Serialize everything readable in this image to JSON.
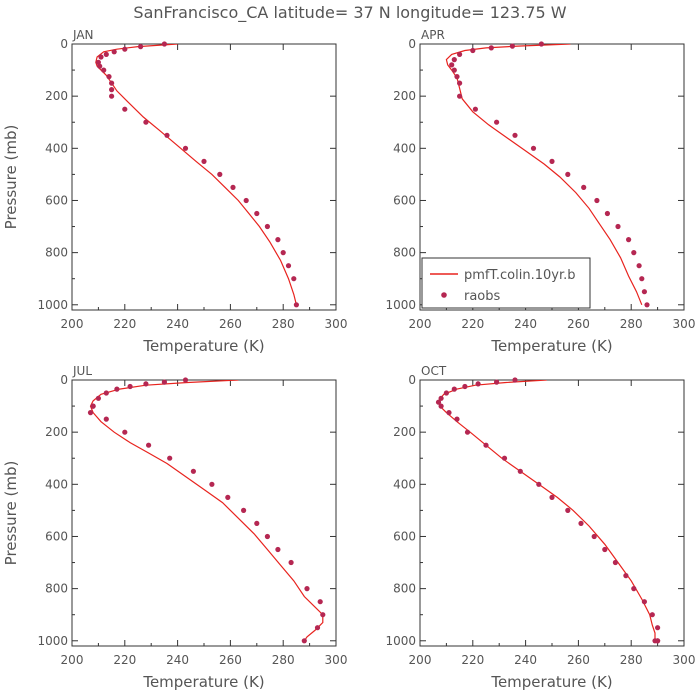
{
  "title": "SanFrancisco_CA  latitude= 37 N longitude= 123.75 W",
  "colors": {
    "model_line": "#e8231e",
    "raobs_marker": "#b52752",
    "axis": "#333333",
    "text": "#555555"
  },
  "legend": {
    "model_label": "pmfT.colin.10yr.b",
    "raobs_label": "raobs",
    "panel": "APR"
  },
  "chart_data": [
    {
      "type": "scatter",
      "panel": "JAN",
      "xlabel": "Temperature (K)",
      "ylabel": "Pressure (mb)",
      "xlim": [
        200,
        300
      ],
      "ylim": [
        1020,
        0
      ],
      "y_reversed": true,
      "xticks": [
        200,
        220,
        240,
        260,
        280,
        300
      ],
      "yticks": [
        0,
        200,
        400,
        600,
        800,
        1000
      ],
      "series": [
        {
          "name": "pmfT.colin.10yr.b",
          "kind": "line",
          "x": [
            240,
            225,
            217,
            212,
            209.5,
            209,
            209.5,
            211,
            213,
            215,
            217,
            221,
            227,
            233,
            240,
            247,
            253,
            258,
            263,
            267,
            271,
            275,
            279,
            282,
            284,
            285
          ],
          "y": [
            0,
            10,
            20,
            30,
            50,
            70,
            85,
            100,
            120,
            150,
            180,
            220,
            280,
            330,
            390,
            450,
            500,
            550,
            600,
            650,
            700,
            760,
            830,
            900,
            960,
            1000
          ]
        },
        {
          "name": "raobs",
          "kind": "points",
          "x": [
            235,
            226,
            220,
            216,
            213,
            211,
            210,
            210.5,
            212,
            214,
            215,
            215,
            215,
            220,
            228,
            236,
            243,
            250,
            256,
            261,
            266,
            270,
            274,
            278,
            280,
            282,
            284,
            285
          ],
          "y": [
            0,
            10,
            20,
            30,
            40,
            50,
            70,
            85,
            100,
            125,
            150,
            175,
            200,
            250,
            300,
            350,
            400,
            450,
            500,
            550,
            600,
            650,
            700,
            750,
            800,
            850,
            900,
            1000
          ]
        }
      ]
    },
    {
      "type": "scatter",
      "panel": "APR",
      "xlabel": "Temperature (K)",
      "ylabel": "",
      "xlim": [
        200,
        300
      ],
      "ylim": [
        1020,
        0
      ],
      "y_reversed": true,
      "xticks": [
        200,
        220,
        240,
        260,
        280,
        300
      ],
      "yticks": [
        0,
        200,
        400,
        600,
        800,
        1000
      ],
      "series": [
        {
          "name": "pmfT.colin.10yr.b",
          "kind": "line",
          "x": [
            257,
            237,
            225,
            217,
            212,
            210,
            210.5,
            212,
            214,
            215,
            216,
            220,
            226,
            233,
            240,
            247,
            253,
            259,
            264,
            268,
            272,
            276,
            279,
            282,
            284
          ],
          "y": [
            0,
            8,
            15,
            25,
            40,
            60,
            80,
            100,
            130,
            170,
            210,
            260,
            310,
            360,
            410,
            460,
            510,
            570,
            630,
            690,
            750,
            820,
            890,
            950,
            1000
          ]
        },
        {
          "name": "raobs",
          "kind": "points",
          "x": [
            246,
            235,
            227,
            220,
            215,
            213,
            212,
            213,
            214,
            215,
            215,
            221,
            229,
            236,
            243,
            250,
            256,
            262,
            267,
            271,
            275,
            279,
            281,
            283,
            284,
            285,
            286
          ],
          "y": [
            0,
            8,
            15,
            25,
            40,
            60,
            80,
            100,
            125,
            150,
            200,
            250,
            300,
            350,
            400,
            450,
            500,
            550,
            600,
            650,
            700,
            750,
            800,
            850,
            900,
            950,
            1000
          ]
        }
      ]
    },
    {
      "type": "scatter",
      "panel": "JUL",
      "xlabel": "Temperature (K)",
      "ylabel": "Pressure (mb)",
      "xlim": [
        200,
        300
      ],
      "ylim": [
        1020,
        0
      ],
      "y_reversed": true,
      "xticks": [
        200,
        220,
        240,
        260,
        280,
        300
      ],
      "yticks": [
        0,
        200,
        400,
        600,
        800,
        1000
      ],
      "series": [
        {
          "name": "pmfT.colin.10yr.b",
          "kind": "line",
          "x": [
            263,
            243,
            228,
            218,
            211,
            208,
            207,
            208,
            211,
            216,
            222,
            229,
            236,
            243,
            250,
            257,
            263,
            269,
            274,
            279,
            284,
            288,
            292,
            295,
            295,
            292,
            289,
            288
          ],
          "y": [
            0,
            10,
            20,
            35,
            55,
            80,
            100,
            125,
            160,
            200,
            240,
            280,
            320,
            370,
            420,
            470,
            530,
            590,
            650,
            710,
            770,
            830,
            870,
            900,
            930,
            960,
            985,
            1000
          ]
        },
        {
          "name": "raobs",
          "kind": "points",
          "x": [
            243,
            235,
            228,
            222,
            217,
            213,
            210,
            208,
            207,
            208,
            213,
            220,
            229,
            237,
            246,
            253,
            259,
            265,
            270,
            274,
            278,
            283,
            289,
            294,
            295,
            293,
            288
          ],
          "y": [
            0,
            8,
            15,
            25,
            35,
            50,
            70,
            100,
            125,
            100,
            150,
            200,
            250,
            300,
            350,
            400,
            450,
            500,
            550,
            600,
            650,
            700,
            800,
            850,
            900,
            950,
            1000
          ]
        }
      ]
    },
    {
      "type": "scatter",
      "panel": "OCT",
      "xlabel": "Temperature (K)",
      "ylabel": "",
      "xlim": [
        200,
        300
      ],
      "ylim": [
        1020,
        0
      ],
      "y_reversed": true,
      "xticks": [
        200,
        220,
        240,
        260,
        280,
        300
      ],
      "yticks": [
        0,
        200,
        400,
        600,
        800,
        1000
      ],
      "series": [
        {
          "name": "pmfT.colin.10yr.b",
          "kind": "line",
          "x": [
            248,
            232,
            221,
            214,
            209,
            207,
            207.5,
            210,
            214,
            219,
            225,
            231,
            238,
            245,
            252,
            258,
            264,
            270,
            275,
            280,
            284,
            287,
            288,
            289,
            289
          ],
          "y": [
            0,
            10,
            20,
            35,
            55,
            80,
            100,
            125,
            160,
            200,
            250,
            300,
            350,
            400,
            450,
            500,
            560,
            630,
            700,
            770,
            840,
            900,
            940,
            970,
            1000
          ]
        },
        {
          "name": "raobs",
          "kind": "points",
          "x": [
            236,
            229,
            222,
            217,
            213,
            210,
            208,
            207,
            208,
            211,
            214,
            218,
            225,
            232,
            238,
            245,
            250,
            256,
            261,
            266,
            270,
            274,
            278,
            281,
            285,
            288,
            290,
            290,
            290,
            289
          ],
          "y": [
            0,
            8,
            15,
            25,
            35,
            50,
            70,
            85,
            100,
            125,
            150,
            200,
            250,
            300,
            350,
            400,
            450,
            500,
            550,
            600,
            650,
            700,
            750,
            800,
            850,
            900,
            950,
            1000,
            1000,
            1000
          ]
        }
      ]
    }
  ]
}
